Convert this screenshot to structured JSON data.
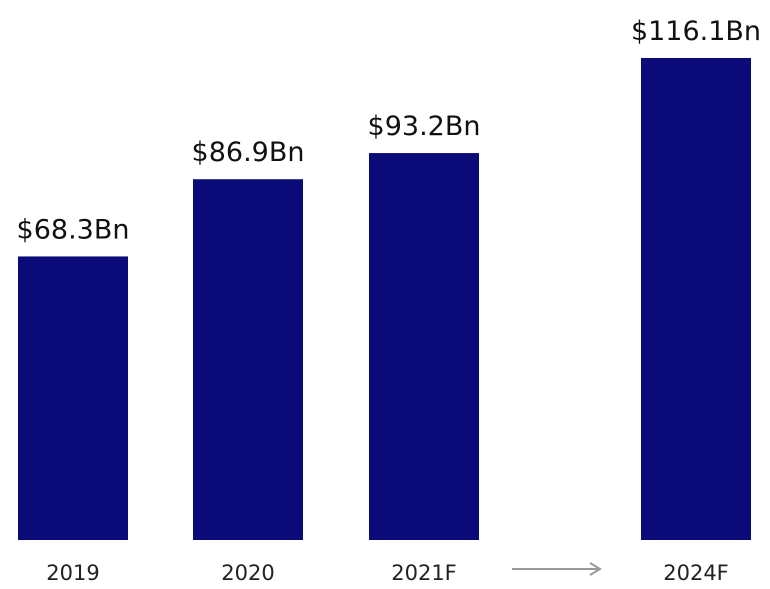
{
  "colors": {
    "bar": "#0a0a78",
    "arrow": "#9a9a9a",
    "text": "#111111"
  },
  "chart_data": {
    "type": "bar",
    "categories": [
      "2019",
      "2020",
      "2021F",
      "2024F"
    ],
    "values": [
      68.3,
      86.9,
      93.2,
      116.1
    ],
    "value_labels": [
      "$68.3Bn",
      "$86.9Bn",
      "$93.2Bn",
      "$116.1Bn"
    ],
    "title": "",
    "xlabel": "",
    "ylabel": "",
    "ylim": [
      0,
      116.1
    ],
    "grid": false,
    "legend": "none",
    "annotations": [
      {
        "type": "arrow",
        "from_category": "2021F",
        "to_category": "2024F",
        "icon": "right-arrow-icon"
      }
    ]
  }
}
